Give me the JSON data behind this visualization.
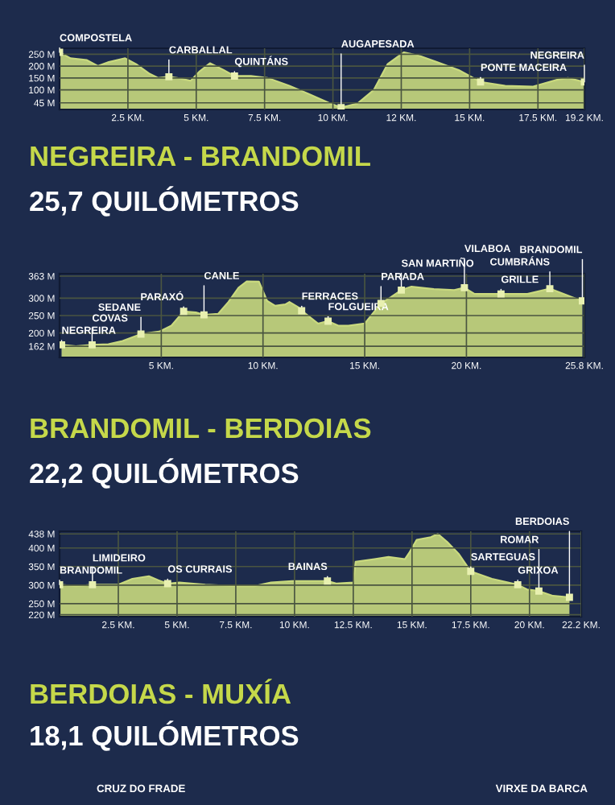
{
  "chart_data": [
    {
      "type": "area",
      "color": "#c9d97e",
      "grid": true,
      "x": [
        0.0,
        0.4,
        1.0,
        1.4,
        1.8,
        2.4,
        2.8,
        3.3,
        3.6,
        4.0,
        4.3,
        4.8,
        5.1,
        5.5,
        6.0,
        6.4,
        7.0,
        7.6,
        8.4,
        9.1,
        9.9,
        10.3,
        10.9,
        11.5,
        12.0,
        12.6,
        13.2,
        13.8,
        14.6,
        15.4,
        16.3,
        17.3,
        18.2,
        18.6,
        19.2
      ],
      "values": [
        258,
        233,
        225,
        200,
        217,
        233,
        208,
        167,
        150,
        155,
        150,
        138,
        175,
        212,
        183,
        158,
        158,
        150,
        117,
        83,
        42,
        25,
        42,
        100,
        208,
        258,
        242,
        217,
        183,
        133,
        117,
        113,
        142,
        150,
        133
      ],
      "xlim": [
        0,
        19.2
      ],
      "ylim": [
        17,
        275
      ],
      "xticks": [
        {
          "value": 2.5,
          "label": "2.5 KM."
        },
        {
          "value": 5,
          "label": "5 KM."
        },
        {
          "value": 7.5,
          "label": "7.5 KM."
        },
        {
          "value": 10,
          "label": "10 KM."
        },
        {
          "value": 12.5,
          "label": "12 KM."
        },
        {
          "value": 15,
          "label": "15 KM."
        },
        {
          "value": 17.5,
          "label": "17.5 KM."
        },
        {
          "value": 19.2,
          "label": "19.2 KM."
        }
      ],
      "yticks": [
        {
          "value": 45,
          "label": "45 M"
        },
        {
          "value": 100,
          "label": "100 M"
        },
        {
          "value": 150,
          "label": "150 M"
        },
        {
          "value": 200,
          "label": "200 M"
        },
        {
          "value": 250,
          "label": "250 M"
        }
      ],
      "annotations": [
        {
          "text": "COMPOSTELA",
          "x": 0.0,
          "y": 258
        },
        {
          "text": "CARBALLAL",
          "x": 4.0,
          "y": 155
        },
        {
          "text": "QUINTÁNS",
          "x": 6.4,
          "y": 158
        },
        {
          "text": "AUGAPESADA",
          "x": 10.3,
          "y": 25
        },
        {
          "text": "PONTE MACEIRA",
          "x": 15.4,
          "y": 133
        },
        {
          "text": "NEGREIRA",
          "x": 19.2,
          "y": 133
        }
      ]
    },
    {
      "type": "area",
      "color": "#c9d97e",
      "grid": true,
      "title": "NEGREIRA - BRANDOMIL",
      "subtitle": "25,7 QUILÓMETROS",
      "x": [
        0.1,
        0.8,
        1.6,
        2.4,
        3.1,
        4.0,
        4.9,
        5.5,
        6.1,
        6.7,
        7.1,
        7.8,
        8.3,
        8.8,
        9.2,
        9.8,
        10.2,
        10.6,
        11.1,
        11.3,
        11.7,
        11.9,
        12.4,
        12.7,
        13.2,
        13.7,
        14.2,
        15.0,
        15.8,
        16.3,
        16.8,
        17.3,
        18.4,
        19.4,
        19.9,
        20.4,
        21.7,
        23.0,
        24.1,
        25.1,
        25.7
      ],
      "values": [
        166,
        162,
        166,
        168,
        177,
        197,
        204,
        221,
        262,
        259,
        252,
        255,
        289,
        330,
        348,
        347,
        292,
        278,
        282,
        289,
        275,
        264,
        241,
        227,
        234,
        221,
        221,
        227,
        285,
        303,
        323,
        333,
        326,
        323,
        330,
        312,
        312,
        312,
        327,
        305,
        292
      ],
      "xlim": [
        0,
        25.8
      ],
      "ylim": [
        130,
        370
      ],
      "xticks": [
        {
          "value": 5,
          "label": "5 KM."
        },
        {
          "value": 10,
          "label": "10 KM."
        },
        {
          "value": 15,
          "label": "15 KM."
        },
        {
          "value": 20,
          "label": "20 KM."
        },
        {
          "value": 25.8,
          "label": "25.8 KM."
        }
      ],
      "yticks": [
        {
          "value": 162,
          "label": "162 M"
        },
        {
          "value": 200,
          "label": "200 M"
        },
        {
          "value": 250,
          "label": "250 M"
        },
        {
          "value": 300,
          "label": "300 M"
        },
        {
          "value": 363,
          "label": "363 M"
        }
      ],
      "annotations": [
        {
          "text": "NEGREIRA",
          "x": 0.1,
          "y": 166
        },
        {
          "text": "COVAS",
          "x": 1.6,
          "y": 166
        },
        {
          "text": "SEDANE",
          "x": 4.0,
          "y": 197
        },
        {
          "text": "PARAXÓ",
          "x": 6.1,
          "y": 262
        },
        {
          "text": "CANLE",
          "x": 7.1,
          "y": 252
        },
        {
          "text": "FERRACES",
          "x": 11.9,
          "y": 264
        },
        {
          "text": "FOLGUEIRA",
          "x": 13.2,
          "y": 234
        },
        {
          "text": "PARADA",
          "x": 15.8,
          "y": 285
        },
        {
          "text": "SAN MARTIÑO",
          "x": 16.8,
          "y": 323
        },
        {
          "text": "VILABOA",
          "x": 19.9,
          "y": 330
        },
        {
          "text": "GRILLE",
          "x": 21.7,
          "y": 312
        },
        {
          "text": "CUMBRÁNS",
          "x": 24.1,
          "y": 327
        },
        {
          "text": "BRANDOMIL",
          "x": 25.7,
          "y": 292
        }
      ]
    },
    {
      "type": "area",
      "color": "#c9d97e",
      "grid": true,
      "title": "BRANDOMIL - BERDOIAS",
      "subtitle": "22,2 QUILÓMETROS",
      "x": [
        0.0,
        0.7,
        1.4,
        2.5,
        3.1,
        3.8,
        4.2,
        4.6,
        5.1,
        6.2,
        7.5,
        8.3,
        9.0,
        9.9,
        10.5,
        11.4,
        11.8,
        12.5,
        12.6,
        13.4,
        14.0,
        14.7,
        14.9,
        15.2,
        15.8,
        16.1,
        16.5,
        17.0,
        17.5,
        18.4,
        19.5,
        19.9,
        20.4,
        21.0,
        21.7
      ],
      "values": [
        301,
        297,
        301,
        301,
        317,
        324,
        313,
        304,
        307,
        301,
        297,
        297,
        307,
        311,
        311,
        311,
        304,
        307,
        363,
        370,
        376,
        370,
        389,
        422,
        429,
        438,
        416,
        383,
        337,
        317,
        301,
        288,
        284,
        271,
        267
      ],
      "xlim": [
        0,
        22.2
      ],
      "ylim": [
        215,
        445
      ],
      "xticks": [
        {
          "value": 2.5,
          "label": "2.5 KM."
        },
        {
          "value": 5,
          "label": "5 KM."
        },
        {
          "value": 7.5,
          "label": "7.5 KM."
        },
        {
          "value": 10,
          "label": "10 KM."
        },
        {
          "value": 12.5,
          "label": "12.5 KM."
        },
        {
          "value": 15,
          "label": "15 KM."
        },
        {
          "value": 17.5,
          "label": "17.5 KM."
        },
        {
          "value": 20,
          "label": "20 KM."
        },
        {
          "value": 22.2,
          "label": "22.2 KM."
        }
      ],
      "yticks": [
        {
          "value": 220,
          "label": "220 M"
        },
        {
          "value": 250,
          "label": "250 M"
        },
        {
          "value": 300,
          "label": "300 M"
        },
        {
          "value": 350,
          "label": "350 M"
        },
        {
          "value": 400,
          "label": "400 M"
        },
        {
          "value": 438,
          "label": "438 M"
        }
      ],
      "annotations": [
        {
          "text": "BRANDOMIL",
          "x": 0.0,
          "y": 301
        },
        {
          "text": "LIMIDEIRO",
          "x": 1.4,
          "y": 301
        },
        {
          "text": "OS CURRAIS",
          "x": 4.6,
          "y": 304
        },
        {
          "text": "BAINAS",
          "x": 11.4,
          "y": 311
        },
        {
          "text": "SARTEGUAS",
          "x": 17.5,
          "y": 337
        },
        {
          "text": "GRIXOA",
          "x": 19.5,
          "y": 301
        },
        {
          "text": "ROMAR",
          "x": 20.4,
          "y": 284
        },
        {
          "text": "BERDOIAS",
          "x": 21.7,
          "y": 267
        }
      ]
    },
    {
      "type": "other",
      "title": "BERDOIAS - MUXÍA",
      "subtitle": "18,1 QUILÓMETROS",
      "annotations": [
        "CRUZ DO FRADE",
        "VIRXE DA BARCA"
      ]
    }
  ]
}
